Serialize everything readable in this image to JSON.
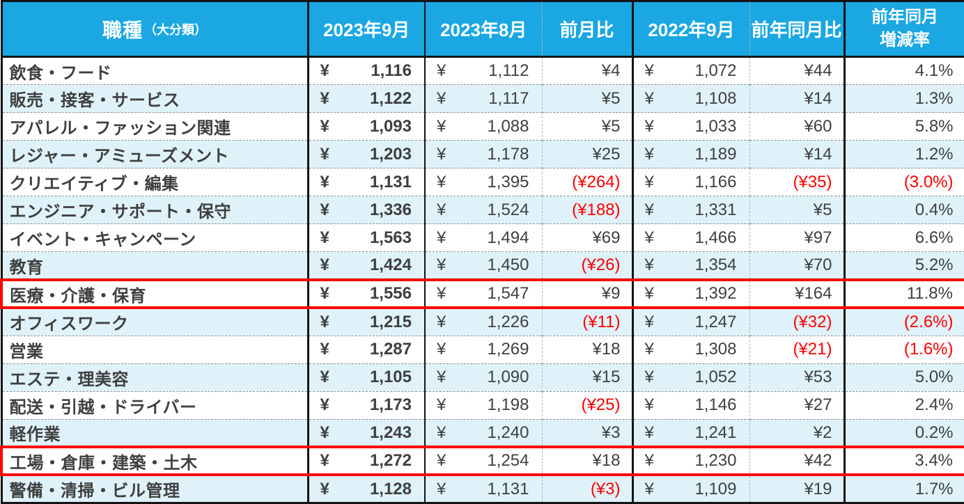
{
  "colors": {
    "header_bg": "#1aa7e2",
    "header_text": "#ffffff",
    "row_alt_bg": "#dff2fa",
    "body_text": "#3f3f3f",
    "negative_text": "#ff0000",
    "highlight_border": "#fe0000",
    "grid_border": "#141414"
  },
  "table": {
    "header": {
      "col1_main": "職種",
      "col1_sub": "（大分類）",
      "col2": "2023年9月",
      "col3": "2023年8月",
      "col4": "前月比",
      "col5": "2022年9月",
      "col6": "前年同月比",
      "col7_line1": "前年同月",
      "col7_line2": "増減率"
    },
    "yen": "¥",
    "rows": [
      {
        "category": "飲食・フード",
        "sep2023": "1,116",
        "aug2023": "1,112",
        "mom": "¥4",
        "mom_neg": false,
        "sep2022": "1,072",
        "yoy": "¥44",
        "yoy_neg": false,
        "rate": "4.1%",
        "rate_neg": false,
        "highlight": false
      },
      {
        "category": "販売・接客・サービス",
        "sep2023": "1,122",
        "aug2023": "1,117",
        "mom": "¥5",
        "mom_neg": false,
        "sep2022": "1,108",
        "yoy": "¥14",
        "yoy_neg": false,
        "rate": "1.3%",
        "rate_neg": false,
        "highlight": false
      },
      {
        "category": "アパレル・ファッション関連",
        "sep2023": "1,093",
        "aug2023": "1,088",
        "mom": "¥5",
        "mom_neg": false,
        "sep2022": "1,033",
        "yoy": "¥60",
        "yoy_neg": false,
        "rate": "5.8%",
        "rate_neg": false,
        "highlight": false
      },
      {
        "category": "レジャー・アミューズメント",
        "sep2023": "1,203",
        "aug2023": "1,178",
        "mom": "¥25",
        "mom_neg": false,
        "sep2022": "1,189",
        "yoy": "¥14",
        "yoy_neg": false,
        "rate": "1.2%",
        "rate_neg": false,
        "highlight": false
      },
      {
        "category": "クリエイティブ・編集",
        "sep2023": "1,131",
        "aug2023": "1,395",
        "mom": "(¥264)",
        "mom_neg": true,
        "sep2022": "1,166",
        "yoy": "(¥35)",
        "yoy_neg": true,
        "rate": "(3.0%)",
        "rate_neg": true,
        "highlight": false
      },
      {
        "category": "エンジニア・サポート・保守",
        "sep2023": "1,336",
        "aug2023": "1,524",
        "mom": "(¥188)",
        "mom_neg": true,
        "sep2022": "1,331",
        "yoy": "¥5",
        "yoy_neg": false,
        "rate": "0.4%",
        "rate_neg": false,
        "highlight": false
      },
      {
        "category": "イベント・キャンペーン",
        "sep2023": "1,563",
        "aug2023": "1,494",
        "mom": "¥69",
        "mom_neg": false,
        "sep2022": "1,466",
        "yoy": "¥97",
        "yoy_neg": false,
        "rate": "6.6%",
        "rate_neg": false,
        "highlight": false
      },
      {
        "category": "教育",
        "sep2023": "1,424",
        "aug2023": "1,450",
        "mom": "(¥26)",
        "mom_neg": true,
        "sep2022": "1,354",
        "yoy": "¥70",
        "yoy_neg": false,
        "rate": "5.2%",
        "rate_neg": false,
        "highlight": false
      },
      {
        "category": "医療・介護・保育",
        "sep2023": "1,556",
        "aug2023": "1,547",
        "mom": "¥9",
        "mom_neg": false,
        "sep2022": "1,392",
        "yoy": "¥164",
        "yoy_neg": false,
        "rate": "11.8%",
        "rate_neg": false,
        "highlight": true
      },
      {
        "category": "オフィスワーク",
        "sep2023": "1,215",
        "aug2023": "1,226",
        "mom": "(¥11)",
        "mom_neg": true,
        "sep2022": "1,247",
        "yoy": "(¥32)",
        "yoy_neg": true,
        "rate": "(2.6%)",
        "rate_neg": true,
        "highlight": false
      },
      {
        "category": "営業",
        "sep2023": "1,287",
        "aug2023": "1,269",
        "mom": "¥18",
        "mom_neg": false,
        "sep2022": "1,308",
        "yoy": "(¥21)",
        "yoy_neg": true,
        "rate": "(1.6%)",
        "rate_neg": true,
        "highlight": false
      },
      {
        "category": "エステ・理美容",
        "sep2023": "1,105",
        "aug2023": "1,090",
        "mom": "¥15",
        "mom_neg": false,
        "sep2022": "1,052",
        "yoy": "¥53",
        "yoy_neg": false,
        "rate": "5.0%",
        "rate_neg": false,
        "highlight": false
      },
      {
        "category": "配送・引越・ドライバー",
        "sep2023": "1,173",
        "aug2023": "1,198",
        "mom": "(¥25)",
        "mom_neg": true,
        "sep2022": "1,146",
        "yoy": "¥27",
        "yoy_neg": false,
        "rate": "2.4%",
        "rate_neg": false,
        "highlight": false
      },
      {
        "category": "軽作業",
        "sep2023": "1,243",
        "aug2023": "1,240",
        "mom": "¥3",
        "mom_neg": false,
        "sep2022": "1,241",
        "yoy": "¥2",
        "yoy_neg": false,
        "rate": "0.2%",
        "rate_neg": false,
        "highlight": false
      },
      {
        "category": "工場・倉庫・建築・土木",
        "sep2023": "1,272",
        "aug2023": "1,254",
        "mom": "¥18",
        "mom_neg": false,
        "sep2022": "1,230",
        "yoy": "¥42",
        "yoy_neg": false,
        "rate": "3.4%",
        "rate_neg": false,
        "highlight": true
      },
      {
        "category": "警備・清掃・ビル管理",
        "sep2023": "1,128",
        "aug2023": "1,131",
        "mom": "(¥3)",
        "mom_neg": true,
        "sep2022": "1,109",
        "yoy": "¥19",
        "yoy_neg": false,
        "rate": "1.7%",
        "rate_neg": false,
        "highlight": false
      }
    ]
  },
  "chart_data": {
    "type": "table",
    "columns": [
      "職種（大分類）",
      "2023年9月",
      "2023年8月",
      "前月比",
      "2022年9月",
      "前年同月比",
      "前年同月増減率"
    ],
    "rows": [
      [
        "飲食・フード",
        1116,
        1112,
        4,
        1072,
        44,
        "4.1%"
      ],
      [
        "販売・接客・サービス",
        1122,
        1117,
        5,
        1108,
        14,
        "1.3%"
      ],
      [
        "アパレル・ファッション関連",
        1093,
        1088,
        5,
        1033,
        60,
        "5.8%"
      ],
      [
        "レジャー・アミューズメント",
        1203,
        1178,
        25,
        1189,
        14,
        "1.2%"
      ],
      [
        "クリエイティブ・編集",
        1131,
        1395,
        -264,
        1166,
        -35,
        "-3.0%"
      ],
      [
        "エンジニア・サポート・保守",
        1336,
        1524,
        -188,
        1331,
        5,
        "0.4%"
      ],
      [
        "イベント・キャンペーン",
        1563,
        1494,
        69,
        1466,
        97,
        "6.6%"
      ],
      [
        "教育",
        1424,
        1450,
        -26,
        1354,
        70,
        "5.2%"
      ],
      [
        "医療・介護・保育",
        1556,
        1547,
        9,
        1392,
        164,
        "11.8%"
      ],
      [
        "オフィスワーク",
        1215,
        1226,
        -11,
        1247,
        -32,
        "-2.6%"
      ],
      [
        "営業",
        1287,
        1269,
        18,
        1308,
        -21,
        "-1.6%"
      ],
      [
        "エステ・理美容",
        1105,
        1090,
        15,
        1052,
        53,
        "5.0%"
      ],
      [
        "配送・引越・ドライバー",
        1173,
        1198,
        -25,
        1146,
        27,
        "2.4%"
      ],
      [
        "軽作業",
        1243,
        1240,
        3,
        1241,
        2,
        "0.2%"
      ],
      [
        "工場・倉庫・建築・土木",
        1272,
        1254,
        18,
        1230,
        42,
        "3.4%"
      ],
      [
        "警備・清掃・ビル管理",
        1128,
        1131,
        -3,
        1109,
        19,
        "1.7%"
      ]
    ],
    "highlighted_rows": [
      "医療・介護・保育",
      "工場・倉庫・建築・土木"
    ],
    "notes": "negative values shown in red parentheses; currency unit ¥ (hourly wage)"
  }
}
